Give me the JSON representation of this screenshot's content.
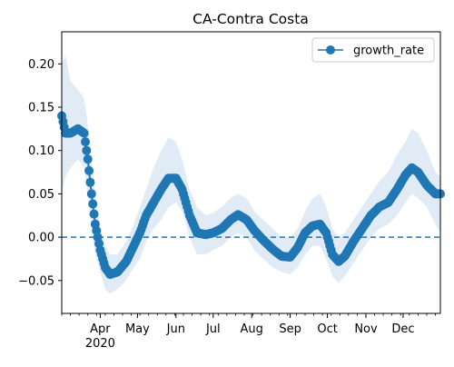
{
  "chart_data": {
    "type": "line",
    "title": "CA-Contra Costa",
    "xlabel": "",
    "ylabel": "",
    "ylim": [
      -0.088,
      0.237
    ],
    "xlim": [
      "2020-03-01",
      "2020-12-31"
    ],
    "legend": {
      "placement": "top-right",
      "entries": [
        "growth_rate"
      ]
    },
    "grid": false,
    "y_ticks": [
      -0.05,
      0.0,
      0.05,
      0.1,
      0.15,
      0.2
    ],
    "y_tick_labels": [
      "−0.05",
      "0.00",
      "0.05",
      "0.10",
      "0.15",
      "0.20"
    ],
    "x_ticks": [
      {
        "date": "2020-04-01",
        "label": "Apr",
        "sublabel": "2020"
      },
      {
        "date": "2020-05-01",
        "label": "May"
      },
      {
        "date": "2020-06-01",
        "label": "Jun"
      },
      {
        "date": "2020-07-01",
        "label": "Jul"
      },
      {
        "date": "2020-08-01",
        "label": "Aug"
      },
      {
        "date": "2020-09-01",
        "label": "Sep"
      },
      {
        "date": "2020-10-01",
        "label": "Oct"
      },
      {
        "date": "2020-11-01",
        "label": "Nov"
      },
      {
        "date": "2020-12-01",
        "label": "Dec"
      }
    ],
    "reference_line": {
      "y": 0.0,
      "style": "dashed"
    },
    "series": [
      {
        "name": "growth_rate",
        "color": "#1f77b4",
        "band_color": "#c6dbef",
        "points": [
          {
            "x": "2020-03-01",
            "y": 0.14,
            "lo": 0.05,
            "hi": 0.2
          },
          {
            "x": "2020-03-04",
            "y": 0.12,
            "lo": 0.07,
            "hi": 0.21
          },
          {
            "x": "2020-03-08",
            "y": 0.12,
            "lo": 0.08,
            "hi": 0.18
          },
          {
            "x": "2020-03-14",
            "y": 0.125,
            "lo": 0.09,
            "hi": 0.17
          },
          {
            "x": "2020-03-19",
            "y": 0.12,
            "lo": 0.08,
            "hi": 0.16
          },
          {
            "x": "2020-03-22",
            "y": 0.09,
            "lo": 0.05,
            "hi": 0.13
          },
          {
            "x": "2020-03-25",
            "y": 0.05,
            "lo": 0.01,
            "hi": 0.09
          },
          {
            "x": "2020-03-28",
            "y": 0.015,
            "lo": -0.02,
            "hi": 0.05
          },
          {
            "x": "2020-04-01",
            "y": -0.015,
            "lo": -0.04,
            "hi": 0.01
          },
          {
            "x": "2020-04-05",
            "y": -0.035,
            "lo": -0.06,
            "hi": -0.01
          },
          {
            "x": "2020-04-09",
            "y": -0.043,
            "lo": -0.065,
            "hi": -0.02
          },
          {
            "x": "2020-04-15",
            "y": -0.04,
            "lo": -0.06,
            "hi": -0.02
          },
          {
            "x": "2020-04-22",
            "y": -0.028,
            "lo": -0.05,
            "hi": -0.005
          },
          {
            "x": "2020-04-28",
            "y": -0.01,
            "lo": -0.035,
            "hi": 0.015
          },
          {
            "x": "2020-05-03",
            "y": 0.005,
            "lo": -0.025,
            "hi": 0.035
          },
          {
            "x": "2020-05-08",
            "y": 0.025,
            "lo": -0.005,
            "hi": 0.055
          },
          {
            "x": "2020-05-14",
            "y": 0.04,
            "lo": 0.01,
            "hi": 0.08
          },
          {
            "x": "2020-05-20",
            "y": 0.055,
            "lo": 0.02,
            "hi": 0.1
          },
          {
            "x": "2020-05-26",
            "y": 0.068,
            "lo": 0.035,
            "hi": 0.115
          },
          {
            "x": "2020-06-01",
            "y": 0.068,
            "lo": 0.04,
            "hi": 0.11
          },
          {
            "x": "2020-06-06",
            "y": 0.055,
            "lo": 0.03,
            "hi": 0.09
          },
          {
            "x": "2020-06-12",
            "y": 0.025,
            "lo": 0.0,
            "hi": 0.055
          },
          {
            "x": "2020-06-18",
            "y": 0.005,
            "lo": -0.02,
            "hi": 0.035
          },
          {
            "x": "2020-06-25",
            "y": 0.003,
            "lo": -0.02,
            "hi": 0.025
          },
          {
            "x": "2020-07-01",
            "y": 0.005,
            "lo": -0.015,
            "hi": 0.028
          },
          {
            "x": "2020-07-08",
            "y": 0.01,
            "lo": -0.01,
            "hi": 0.035
          },
          {
            "x": "2020-07-15",
            "y": 0.02,
            "lo": 0.0,
            "hi": 0.045
          },
          {
            "x": "2020-07-21",
            "y": 0.026,
            "lo": 0.005,
            "hi": 0.05
          },
          {
            "x": "2020-07-28",
            "y": 0.02,
            "lo": 0.0,
            "hi": 0.045
          },
          {
            "x": "2020-08-03",
            "y": 0.008,
            "lo": -0.015,
            "hi": 0.03
          },
          {
            "x": "2020-08-10",
            "y": -0.003,
            "lo": -0.025,
            "hi": 0.02
          },
          {
            "x": "2020-08-18",
            "y": -0.014,
            "lo": -0.035,
            "hi": 0.01
          },
          {
            "x": "2020-08-25",
            "y": -0.022,
            "lo": -0.04,
            "hi": 0.0
          },
          {
            "x": "2020-09-01",
            "y": -0.023,
            "lo": -0.043,
            "hi": 0.0
          },
          {
            "x": "2020-09-07",
            "y": -0.012,
            "lo": -0.035,
            "hi": 0.01
          },
          {
            "x": "2020-09-13",
            "y": 0.005,
            "lo": -0.02,
            "hi": 0.03
          },
          {
            "x": "2020-09-19",
            "y": 0.013,
            "lo": -0.01,
            "hi": 0.045
          },
          {
            "x": "2020-09-25",
            "y": 0.015,
            "lo": -0.01,
            "hi": 0.05
          },
          {
            "x": "2020-09-30",
            "y": 0.005,
            "lo": -0.025,
            "hi": 0.035
          },
          {
            "x": "2020-10-05",
            "y": -0.02,
            "lo": -0.045,
            "hi": 0.01
          },
          {
            "x": "2020-10-10",
            "y": -0.028,
            "lo": -0.053,
            "hi": 0.0
          },
          {
            "x": "2020-10-15",
            "y": -0.022,
            "lo": -0.045,
            "hi": 0.005
          },
          {
            "x": "2020-10-22",
            "y": -0.005,
            "lo": -0.03,
            "hi": 0.02
          },
          {
            "x": "2020-10-29",
            "y": 0.01,
            "lo": -0.015,
            "hi": 0.035
          },
          {
            "x": "2020-11-05",
            "y": 0.025,
            "lo": 0.0,
            "hi": 0.05
          },
          {
            "x": "2020-11-12",
            "y": 0.035,
            "lo": 0.01,
            "hi": 0.065
          },
          {
            "x": "2020-11-19",
            "y": 0.04,
            "lo": 0.015,
            "hi": 0.075
          },
          {
            "x": "2020-11-26",
            "y": 0.055,
            "lo": 0.025,
            "hi": 0.095
          },
          {
            "x": "2020-12-03",
            "y": 0.072,
            "lo": 0.04,
            "hi": 0.11
          },
          {
            "x": "2020-12-08",
            "y": 0.08,
            "lo": 0.05,
            "hi": 0.125
          },
          {
            "x": "2020-12-13",
            "y": 0.075,
            "lo": 0.045,
            "hi": 0.12
          },
          {
            "x": "2020-12-20",
            "y": 0.06,
            "lo": 0.035,
            "hi": 0.1
          },
          {
            "x": "2020-12-27",
            "y": 0.05,
            "lo": 0.015,
            "hi": 0.075
          },
          {
            "x": "2020-12-31",
            "y": 0.05,
            "lo": 0.005,
            "hi": 0.07
          }
        ]
      }
    ]
  }
}
